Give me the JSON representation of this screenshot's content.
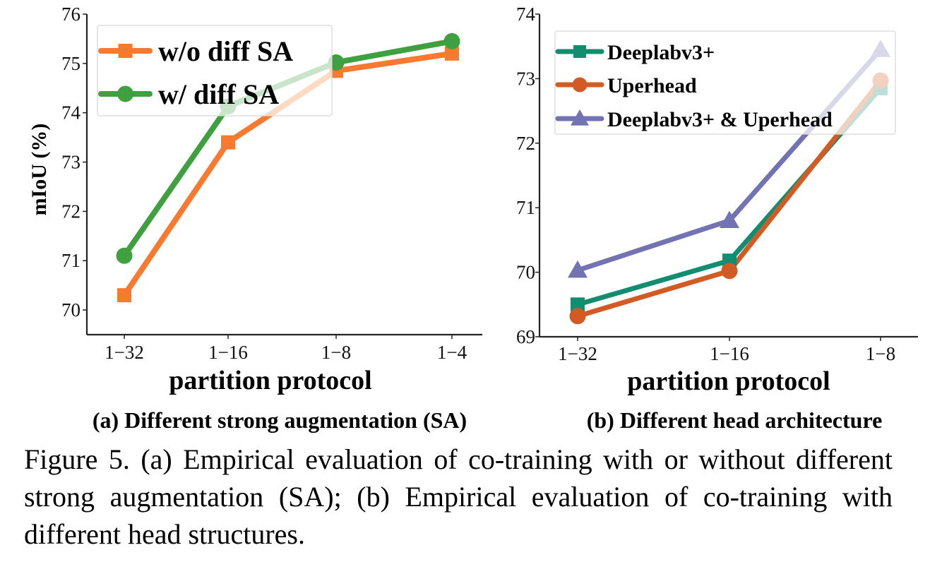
{
  "chart_data": [
    {
      "type": "line",
      "subtitle": "(a) Different strong augmentation (SA)",
      "xlabel": "partition protocol",
      "ylabel": "mIoU (%)",
      "categories": [
        "1−32",
        "1−16",
        "1−8",
        "1−4"
      ],
      "ylim": [
        69.5,
        76
      ],
      "yticks": [
        70,
        71,
        72,
        73,
        74,
        75,
        76
      ],
      "legend_position": "top-left",
      "series": [
        {
          "name": "w/o diff SA",
          "values": [
            70.3,
            73.4,
            74.85,
            75.2
          ],
          "color": "#f97a2e",
          "marker": "square"
        },
        {
          "name": "w/ diff SA",
          "values": [
            71.1,
            74.13,
            75.02,
            75.45
          ],
          "color": "#3fa03f",
          "marker": "circle"
        }
      ]
    },
    {
      "type": "line",
      "subtitle": "(b) Different head architecture",
      "xlabel": "partition protocol",
      "ylabel": "",
      "categories": [
        "1−32",
        "1−16",
        "1−8"
      ],
      "ylim": [
        69,
        74
      ],
      "yticks": [
        69,
        70,
        71,
        72,
        73,
        74
      ],
      "legend_position": "top-left",
      "series": [
        {
          "name": "Deeplabv3+",
          "values": [
            69.5,
            70.18,
            72.85
          ],
          "color": "#128d70",
          "marker": "square"
        },
        {
          "name": "Uperhead",
          "values": [
            69.32,
            70.02,
            72.97
          ],
          "color": "#d35b23",
          "marker": "circle"
        },
        {
          "name": "Deeplabv3+ & Uperhead",
          "values": [
            70.03,
            70.8,
            73.45
          ],
          "color": "#7372b2",
          "marker": "triangle"
        }
      ]
    }
  ],
  "caption": "Figure 5. (a) Empirical evaluation of co-training with or without different strong augmentation (SA); (b) Empirical evaluation of co-training with different head structures."
}
